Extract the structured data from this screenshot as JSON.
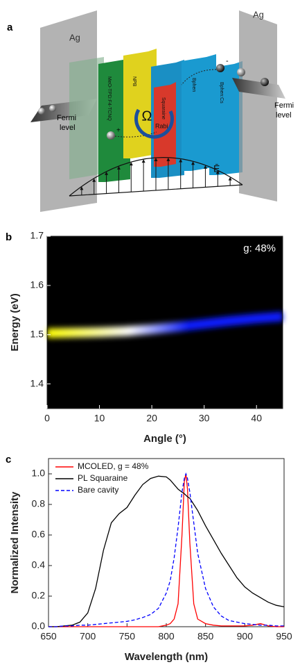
{
  "panel_a": {
    "label": "a",
    "electrodes": [
      "Ag",
      "Ag"
    ],
    "fermi_left": [
      "Fermi",
      "level"
    ],
    "fermi_right": [
      "Fermi",
      "level"
    ],
    "layers": [
      "MeO-TPD:F4-TCNQ",
      "NPB",
      "Squaraine",
      "Bphen",
      "Bphen:Cs"
    ],
    "rabi": {
      "symbol": "Ω",
      "subscript": "Rabi"
    },
    "field": "Ē",
    "charges": [
      "+",
      "-"
    ]
  },
  "chart_data": [
    {
      "type": "heatmap",
      "label": "b",
      "annotation": "g: 48%",
      "xlabel": "Angle (°)",
      "ylabel": "Energy (eV)",
      "x": [
        0,
        5,
        10,
        15,
        20,
        25,
        30,
        35,
        40,
        45
      ],
      "values": [
        1.503,
        1.504,
        1.505,
        1.507,
        1.511,
        1.516,
        1.522,
        1.528,
        1.533,
        1.537
      ],
      "colors": [
        "#ffff00",
        "#ffffff",
        "#0a1cff"
      ],
      "background": "#000000",
      "xlim": [
        0,
        45
      ],
      "xticks": [
        0,
        10,
        20,
        30,
        40
      ],
      "ylim": [
        1.35,
        1.7
      ],
      "yticks": [
        1.4,
        1.5,
        1.6,
        1.7
      ]
    },
    {
      "type": "line",
      "label": "c",
      "xlabel": "Wavelength (nm)",
      "ylabel": "Normalized Intensity",
      "legend": "upper left",
      "x": [
        650,
        660,
        670,
        680,
        690,
        700,
        710,
        720,
        730,
        740,
        750,
        760,
        770,
        780,
        790,
        800,
        805,
        810,
        815,
        820,
        823,
        825,
        827,
        830,
        835,
        840,
        850,
        860,
        870,
        880,
        890,
        900,
        910,
        920,
        930,
        940,
        950
      ],
      "series": [
        {
          "name": "MCOLED, g = 48%",
          "color": "#ff0000",
          "linestyle": "solid",
          "values": [
            0,
            0,
            0,
            0,
            0,
            0,
            0,
            0,
            0,
            0,
            0,
            0,
            0,
            0,
            0,
            0.01,
            0.02,
            0.05,
            0.15,
            0.6,
            0.95,
            1.0,
            0.9,
            0.55,
            0.15,
            0.05,
            0.02,
            0.01,
            0.005,
            0.005,
            0.005,
            0.005,
            0.01,
            0.02,
            0.005,
            0,
            0
          ]
        },
        {
          "name": "PL Squaraine",
          "color": "#000000",
          "linestyle": "solid",
          "values": [
            0,
            0,
            0.005,
            0.01,
            0.03,
            0.09,
            0.25,
            0.5,
            0.68,
            0.74,
            0.78,
            0.86,
            0.93,
            0.97,
            0.985,
            0.98,
            0.96,
            0.93,
            0.9,
            0.88,
            0.87,
            0.86,
            0.85,
            0.84,
            0.8,
            0.76,
            0.66,
            0.57,
            0.48,
            0.4,
            0.32,
            0.26,
            0.22,
            0.19,
            0.16,
            0.14,
            0.13
          ]
        },
        {
          "name": "Bare cavity",
          "color": "#0000ff",
          "linestyle": "dashed",
          "values": [
            0,
            0,
            0.005,
            0.005,
            0.01,
            0.01,
            0.015,
            0.02,
            0.025,
            0.03,
            0.035,
            0.045,
            0.06,
            0.08,
            0.12,
            0.22,
            0.3,
            0.45,
            0.65,
            0.88,
            0.97,
            1.0,
            0.97,
            0.88,
            0.68,
            0.48,
            0.25,
            0.13,
            0.07,
            0.04,
            0.03,
            0.02,
            0.015,
            0.01,
            0.01,
            0.005,
            0.005
          ]
        }
      ],
      "xlim": [
        650,
        950
      ],
      "xticks": [
        650,
        700,
        750,
        800,
        850,
        900,
        950
      ],
      "ylim": [
        0,
        1.1
      ],
      "yticks": [
        {
          "value": 0,
          "label": "0.0"
        },
        0.2,
        0.4,
        0.6,
        0.8,
        {
          "value": 1,
          "label": "1.0"
        }
      ]
    }
  ]
}
